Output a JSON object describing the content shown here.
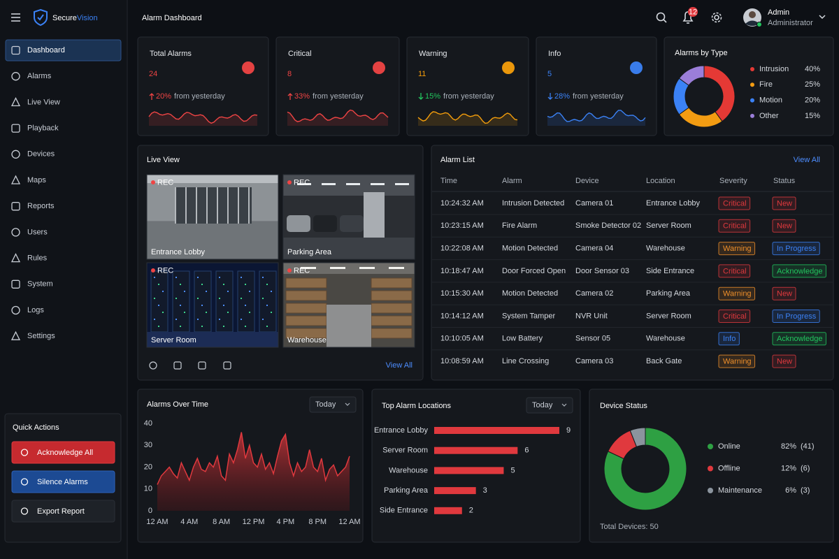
{
  "brand": {
    "name": "Secure",
    "accent": "Vision"
  },
  "nav": [
    "Dashboard",
    "Alarms",
    "Live View",
    "Playback",
    "Devices",
    "Maps",
    "Reports",
    "Users",
    "Rules",
    "System",
    "Logs",
    "Settings"
  ],
  "nav_active": 0,
  "quick_actions": {
    "title": "Quick Actions",
    "buttons": [
      "Acknowledge All",
      "Silence Alarms",
      "Export Report"
    ]
  },
  "header": {
    "title": "Alarm Dashboard",
    "notification_count": 12,
    "user_name": "Admin",
    "user_role": "Administrator"
  },
  "stats": [
    {
      "label": "Total Alarms",
      "value": 24,
      "change": "20%",
      "direction": "up",
      "note": "from yesterday",
      "color": "#ef4444",
      "change_color": "#ef4444"
    },
    {
      "label": "Critical",
      "value": 8,
      "change": "33%",
      "direction": "up",
      "note": "from yesterday",
      "color": "#ef4444",
      "change_color": "#ef4444"
    },
    {
      "label": "Warning",
      "value": 11,
      "change": "15%",
      "direction": "down",
      "note": "from yesterday",
      "color": "#f59e0b",
      "change_color": "#22c55e"
    },
    {
      "label": "Info",
      "value": 5,
      "change": "28%",
      "direction": "down",
      "note": "from yesterday",
      "color": "#3b82f6",
      "change_color": "#3b82f6"
    }
  ],
  "live_view": {
    "title": "Live View",
    "rec": "REC",
    "cameras": [
      "Entrance Lobby",
      "Parking Area",
      "Server Room",
      "Warehouse"
    ],
    "view_all": "View All"
  },
  "alarm_list": {
    "title": "Alarm List",
    "view_all": "View All",
    "columns": [
      "Time",
      "Alarm",
      "Device",
      "Location",
      "Severity",
      "Status"
    ],
    "rows": [
      {
        "cells": [
          "10:24:32 AM",
          "Intrusion Detected",
          "Camera 01",
          "Entrance Lobby",
          "Critical",
          "New"
        ],
        "colors": [
          "#e0393e",
          "#e0393e"
        ]
      },
      {
        "cells": [
          "10:23:15 AM",
          "Fire Alarm",
          "Smoke Detector 02",
          "Server Room",
          "Critical",
          "New"
        ],
        "colors": [
          "#e0393e",
          "#e0393e"
        ]
      },
      {
        "cells": [
          "10:22:08 AM",
          "Motion Detected",
          "Camera 04",
          "Warehouse",
          "Warning",
          "In Progress"
        ],
        "colors": [
          "#f0902a",
          "#3b82f6"
        ]
      },
      {
        "cells": [
          "10:18:47 AM",
          "Door Forced Open",
          "Door Sensor 03",
          "Side Entrance",
          "Critical",
          "Acknowledge"
        ],
        "colors": [
          "#e0393e",
          "#22c55e"
        ]
      },
      {
        "cells": [
          "10:15:30 AM",
          "Motion Detected",
          "Camera 02",
          "Parking Area",
          "Warning",
          "New"
        ],
        "colors": [
          "#f0902a",
          "#e0393e"
        ]
      },
      {
        "cells": [
          "10:14:12 AM",
          "System Tamper",
          "NVR Unit",
          "Server Room",
          "Critical",
          "In Progress"
        ],
        "colors": [
          "#e0393e",
          "#3b82f6"
        ]
      },
      {
        "cells": [
          "10:10:05 AM",
          "Low Battery",
          "Sensor 05",
          "Warehouse",
          "Info",
          "Acknowledge"
        ],
        "colors": [
          "#3b82f6",
          "#22c55e"
        ]
      },
      {
        "cells": [
          "10:08:59 AM",
          "Line Crossing",
          "Camera 03",
          "Back Gate",
          "Warning",
          "New"
        ],
        "colors": [
          "#f0902a",
          "#e0393e"
        ]
      }
    ]
  },
  "chart_data": [
    {
      "type": "donut",
      "title": "Alarms by Type",
      "categories": [
        "Intrusion",
        "Fire",
        "Motion",
        "Other"
      ],
      "values": [
        40,
        25,
        20,
        15
      ],
      "value_labels": [
        "40%",
        "25%",
        "20%",
        "15%"
      ],
      "colors": [
        "#e53935",
        "#f39c12",
        "#3b82f6",
        "#9b7ed9"
      ]
    },
    {
      "type": "area",
      "title": "Alarms Over Time",
      "filter": "Today",
      "x": [
        0,
        0.5,
        1,
        1.5,
        2,
        2.5,
        3,
        3.5,
        4,
        4.5,
        5,
        5.5,
        6,
        6.5,
        7,
        7.5,
        8,
        8.5,
        9,
        9.5,
        10,
        10.5,
        11,
        11.5,
        12,
        12.5,
        13,
        13.5,
        14,
        14.5,
        15,
        15.5,
        16,
        16.5,
        17,
        17.5,
        18,
        18.5,
        19,
        19.5,
        20,
        20.5,
        21,
        21.5,
        22,
        22.5,
        23,
        23.5,
        24
      ],
      "values": [
        12,
        16,
        18,
        20,
        17,
        15,
        22,
        18,
        14,
        20,
        24,
        19,
        18,
        22,
        20,
        25,
        16,
        14,
        26,
        22,
        28,
        36,
        24,
        30,
        22,
        20,
        26,
        19,
        22,
        17,
        25,
        32,
        35,
        22,
        16,
        22,
        18,
        20,
        28,
        20,
        18,
        24,
        14,
        19,
        21,
        16,
        18,
        20,
        25
      ],
      "xlim": [
        0,
        24
      ],
      "ylim": [
        0,
        40
      ],
      "xticks": [
        {
          "value": 0,
          "label": "12 AM"
        },
        {
          "value": 4,
          "label": "4 AM"
        },
        {
          "value": 8,
          "label": "8 AM"
        },
        {
          "value": 12,
          "label": "12 PM"
        },
        {
          "value": 16,
          "label": "4 PM"
        },
        {
          "value": 20,
          "label": "8 PM"
        },
        {
          "value": 24,
          "label": "12 AM"
        }
      ],
      "yticks": [
        0,
        10,
        20,
        30,
        40
      ],
      "color": "#e0393e"
    },
    {
      "type": "bar",
      "title": "Top Alarm Locations",
      "filter": "Today",
      "categories": [
        "Entrance Lobby",
        "Server Room",
        "Warehouse",
        "Parking Area",
        "Side Entrance"
      ],
      "values": [
        9,
        6,
        5,
        3,
        2
      ],
      "color": "#e0393e"
    },
    {
      "type": "donut",
      "title": "Device Status",
      "categories": [
        "Online",
        "Offline",
        "Maintenance"
      ],
      "values": [
        82,
        12,
        6
      ],
      "value_labels": [
        "82%",
        "12%",
        "6%"
      ],
      "count_labels": [
        "(41)",
        "(6)",
        "(3)"
      ],
      "colors": [
        "#2ea043",
        "#e0393e",
        "#8b949e"
      ],
      "footnote": "Total Devices: 50"
    }
  ]
}
